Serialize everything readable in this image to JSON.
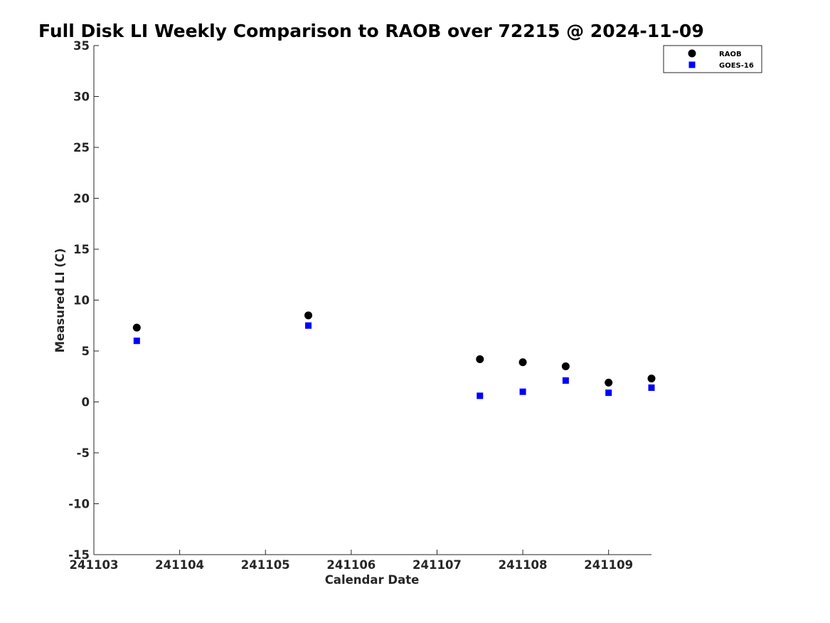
{
  "chart_data": {
    "type": "scatter",
    "title": "Full Disk LI Weekly Comparison to RAOB over 72215 @ 2024-11-09",
    "xlabel": "Calendar Date",
    "ylabel": "Measured LI (C)",
    "xlim": [
      241103,
      241109.5
    ],
    "ylim": [
      -15,
      35
    ],
    "xticks": [
      241103,
      241104,
      241105,
      241106,
      241107,
      241108,
      241109
    ],
    "xtick_labels": [
      "241103",
      "241104",
      "241105",
      "241106",
      "241107",
      "241108",
      "241109"
    ],
    "yticks": [
      -15,
      -10,
      -5,
      0,
      5,
      10,
      15,
      20,
      25,
      30,
      35
    ],
    "ytick_labels": [
      "-15",
      "-10",
      "-5",
      "0",
      "5",
      "10",
      "15",
      "20",
      "25",
      "30",
      "35"
    ],
    "grid": false,
    "legend_position": "top-right",
    "series": [
      {
        "name": "RAOB",
        "marker": "circle",
        "color": "#000000",
        "x": [
          241103.5,
          241105.5,
          241107.5,
          241108.0,
          241108.5,
          241109.0,
          241109.5
        ],
        "y": [
          7.3,
          8.5,
          4.2,
          3.9,
          3.5,
          1.9,
          2.3
        ]
      },
      {
        "name": "GOES-16",
        "marker": "square",
        "color": "#0000ff",
        "x": [
          241103.5,
          241105.5,
          241107.5,
          241108.0,
          241108.5,
          241109.0,
          241109.5
        ],
        "y": [
          6.0,
          7.5,
          0.6,
          1.0,
          2.1,
          0.9,
          1.4
        ]
      }
    ]
  }
}
